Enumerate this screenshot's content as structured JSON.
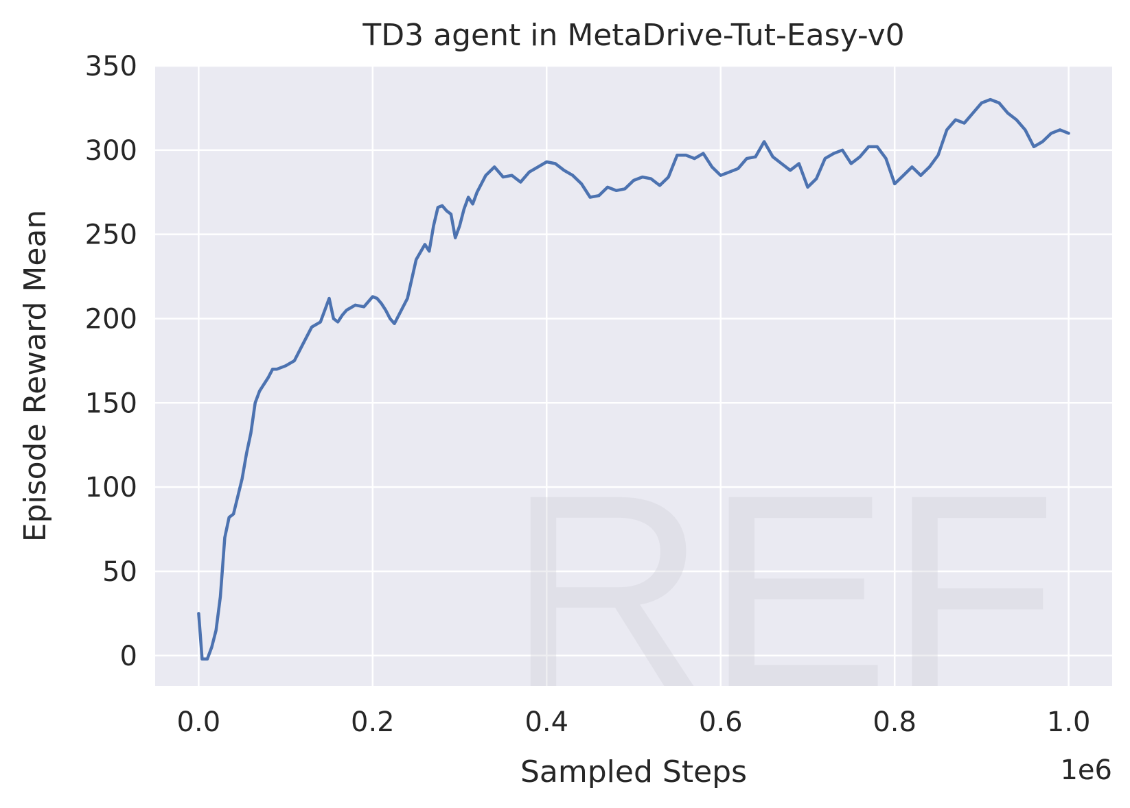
{
  "chart_data": {
    "type": "line",
    "title": "TD3 agent in MetaDrive-Tut-Easy-v0",
    "xlabel": "Sampled Steps",
    "ylabel": "Episode Reward Mean",
    "x_offset_label": "1e6",
    "xlim": [
      -0.05,
      1.05
    ],
    "ylim": [
      -18,
      350
    ],
    "xticks": [
      0.0,
      0.2,
      0.4,
      0.6,
      0.8,
      1.0
    ],
    "xtick_labels": [
      "0.0",
      "0.2",
      "0.4",
      "0.6",
      "0.8",
      "1.0"
    ],
    "yticks": [
      0,
      50,
      100,
      150,
      200,
      250,
      300,
      350
    ],
    "ytick_labels": [
      "0",
      "50",
      "100",
      "150",
      "200",
      "250",
      "300",
      "350"
    ],
    "grid": true,
    "watermark": "REF",
    "colors": {
      "background": "#eaeaf2",
      "grid": "#ffffff",
      "line": "#4c72b0"
    },
    "series": [
      {
        "name": "TD3",
        "x": [
          0.0,
          0.004,
          0.01,
          0.015,
          0.02,
          0.025,
          0.03,
          0.035,
          0.04,
          0.05,
          0.055,
          0.06,
          0.065,
          0.07,
          0.08,
          0.085,
          0.09,
          0.1,
          0.11,
          0.12,
          0.13,
          0.14,
          0.15,
          0.155,
          0.16,
          0.165,
          0.17,
          0.18,
          0.19,
          0.2,
          0.205,
          0.21,
          0.215,
          0.22,
          0.225,
          0.23,
          0.24,
          0.25,
          0.26,
          0.265,
          0.27,
          0.275,
          0.28,
          0.285,
          0.29,
          0.295,
          0.3,
          0.305,
          0.31,
          0.315,
          0.32,
          0.33,
          0.34,
          0.35,
          0.36,
          0.37,
          0.38,
          0.39,
          0.4,
          0.41,
          0.42,
          0.43,
          0.44,
          0.45,
          0.46,
          0.47,
          0.48,
          0.49,
          0.5,
          0.51,
          0.52,
          0.53,
          0.54,
          0.55,
          0.56,
          0.57,
          0.58,
          0.59,
          0.6,
          0.61,
          0.62,
          0.63,
          0.64,
          0.65,
          0.66,
          0.67,
          0.68,
          0.69,
          0.7,
          0.71,
          0.72,
          0.73,
          0.74,
          0.75,
          0.76,
          0.77,
          0.78,
          0.79,
          0.8,
          0.81,
          0.82,
          0.83,
          0.84,
          0.85,
          0.86,
          0.87,
          0.88,
          0.89,
          0.9,
          0.91,
          0.92,
          0.93,
          0.94,
          0.95,
          0.96,
          0.97,
          0.98,
          0.99,
          1.0
        ],
        "values": [
          25,
          -2,
          -2,
          5,
          15,
          35,
          70,
          82,
          84,
          105,
          120,
          132,
          150,
          157,
          165,
          170,
          170,
          172,
          175,
          185,
          195,
          198,
          212,
          200,
          198,
          202,
          205,
          208,
          207,
          213,
          212,
          209,
          205,
          200,
          197,
          202,
          212,
          235,
          244,
          240,
          255,
          266,
          267,
          264,
          262,
          248,
          255,
          265,
          272,
          268,
          275,
          285,
          290,
          284,
          285,
          281,
          287,
          290,
          293,
          292,
          288,
          285,
          280,
          272,
          273,
          278,
          276,
          277,
          282,
          284,
          283,
          279,
          284,
          297,
          297,
          295,
          298,
          290,
          285,
          287,
          289,
          295,
          296,
          305,
          296,
          292,
          288,
          292,
          278,
          283,
          295,
          298,
          300,
          292,
          296,
          302,
          302,
          295,
          280,
          285,
          290,
          285,
          290,
          297,
          312,
          318,
          316,
          322,
          328,
          330,
          328,
          322,
          318,
          312,
          302,
          305,
          310,
          312,
          310
        ]
      }
    ]
  }
}
